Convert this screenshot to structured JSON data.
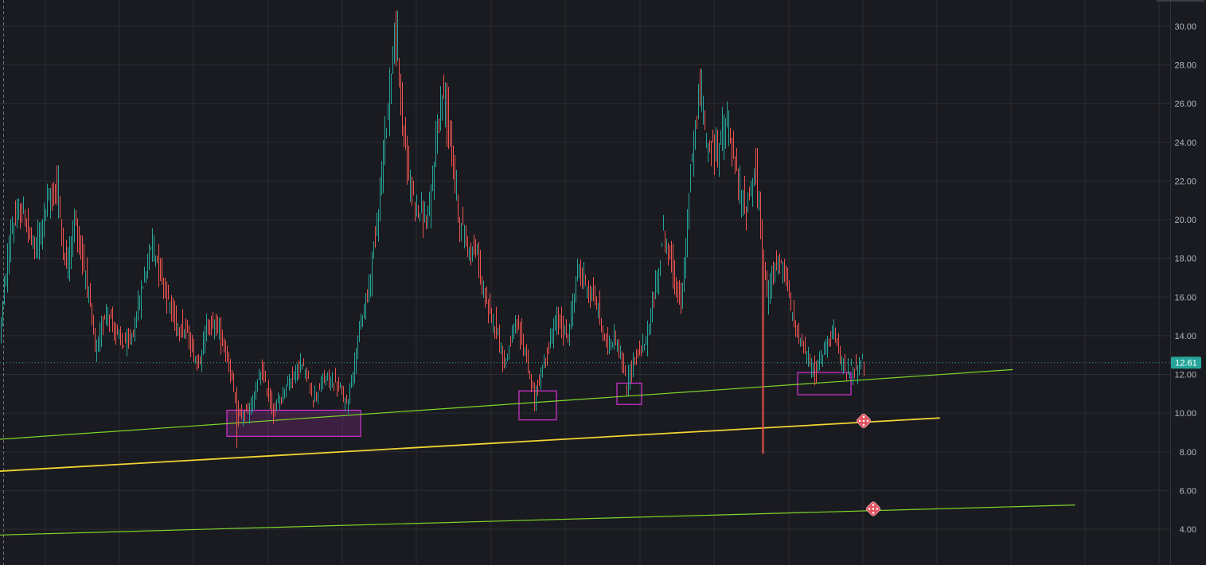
{
  "chart_data": {
    "type": "candlestick",
    "title": "",
    "xlabel": "",
    "ylabel": "",
    "ylim": [
      2.2,
      31.0
    ],
    "y_ticks": [
      "4.00",
      "6.00",
      "8.00",
      "10.00",
      "12.00",
      "14.00",
      "16.00",
      "18.00",
      "20.00",
      "22.00",
      "24.00",
      "26.00",
      "28.00",
      "30.00"
    ],
    "grid": true,
    "last_price": "12.61",
    "colors": {
      "background": "#1a1b20",
      "grid": "#2b2d35",
      "up_candle": "#26a69a",
      "down_candle": "#ef5350",
      "trendline_green": "#7cd82a",
      "trendline_yellow": "#f2d433",
      "zone_box": "#d633d6",
      "price_badge": "#26a69a",
      "dice_marker": "#e5535f"
    },
    "price_path": [
      [
        0,
        13.6
      ],
      [
        15,
        19.5
      ],
      [
        30,
        20.5
      ],
      [
        45,
        18.3
      ],
      [
        60,
        20.8
      ],
      [
        72,
        21.5
      ],
      [
        85,
        17.5
      ],
      [
        95,
        20.0
      ],
      [
        110,
        17.0
      ],
      [
        122,
        13.0
      ],
      [
        135,
        15.5
      ],
      [
        150,
        13.8
      ],
      [
        165,
        13.5
      ],
      [
        180,
        16.5
      ],
      [
        192,
        18.9
      ],
      [
        205,
        17.0
      ],
      [
        220,
        14.8
      ],
      [
        235,
        14.2
      ],
      [
        250,
        12.5
      ],
      [
        262,
        14.6
      ],
      [
        275,
        14.5
      ],
      [
        290,
        12.5
      ],
      [
        300,
        9.8
      ],
      [
        315,
        10.1
      ],
      [
        330,
        12.2
      ],
      [
        345,
        10.0
      ],
      [
        360,
        11.4
      ],
      [
        380,
        12.6
      ],
      [
        395,
        10.8
      ],
      [
        410,
        11.8
      ],
      [
        425,
        11.5
      ],
      [
        437,
        10.4
      ],
      [
        450,
        13.5
      ],
      [
        465,
        16.5
      ],
      [
        480,
        22.0
      ],
      [
        490,
        26.5
      ],
      [
        498,
        29.5
      ],
      [
        505,
        26.0
      ],
      [
        515,
        22.0
      ],
      [
        528,
        20.5
      ],
      [
        540,
        19.8
      ],
      [
        550,
        24.5
      ],
      [
        558,
        26.5
      ],
      [
        568,
        24.0
      ],
      [
        578,
        20.0
      ],
      [
        590,
        18.5
      ],
      [
        600,
        18.3
      ],
      [
        612,
        15.5
      ],
      [
        625,
        14.5
      ],
      [
        635,
        12.5
      ],
      [
        648,
        14.5
      ],
      [
        660,
        13.5
      ],
      [
        672,
        10.8
      ],
      [
        685,
        12.5
      ],
      [
        700,
        14.8
      ],
      [
        715,
        14.0
      ],
      [
        728,
        17.5
      ],
      [
        740,
        16.5
      ],
      [
        752,
        15.5
      ],
      [
        762,
        13.5
      ],
      [
        775,
        14.0
      ],
      [
        788,
        11.5
      ],
      [
        800,
        13.0
      ],
      [
        812,
        13.5
      ],
      [
        825,
        16.5
      ],
      [
        835,
        19.5
      ],
      [
        848,
        17.0
      ],
      [
        858,
        15.5
      ],
      [
        868,
        22.0
      ],
      [
        880,
        26.5
      ],
      [
        890,
        24.0
      ],
      [
        900,
        23.5
      ],
      [
        915,
        25.0
      ],
      [
        928,
        22.0
      ],
      [
        938,
        20.5
      ],
      [
        950,
        22.5
      ],
      [
        958,
        19.0
      ],
      [
        965,
        16.0
      ],
      [
        975,
        18.0
      ],
      [
        988,
        17.0
      ],
      [
        1000,
        14.5
      ],
      [
        1012,
        13.2
      ],
      [
        1025,
        12.0
      ],
      [
        1038,
        13.5
      ],
      [
        1048,
        14.5
      ],
      [
        1058,
        12.5
      ],
      [
        1068,
        12.2
      ],
      [
        1078,
        12.4
      ],
      [
        1085,
        12.6
      ]
    ],
    "wick_extremes": [
      [
        72,
        22.8
      ],
      [
        95,
        20.5
      ],
      [
        192,
        19.2
      ],
      [
        297,
        8.2
      ],
      [
        498,
        30.8
      ],
      [
        558,
        27.1
      ],
      [
        880,
        27.8
      ],
      [
        915,
        25.6
      ],
      [
        950,
        23.7
      ],
      [
        958,
        7.9
      ],
      [
        672,
        10.1
      ],
      [
        788,
        10.9
      ],
      [
        1025,
        11.7
      ]
    ],
    "trendlines": [
      {
        "color": "green",
        "x1": 0,
        "v1": 8.65,
        "x2": 1272,
        "v2": 12.25,
        "width": 1.2
      },
      {
        "color": "yellow",
        "x1": 0,
        "v1": 7.0,
        "x2": 1180,
        "v2": 9.75,
        "width": 1.8
      },
      {
        "color": "green",
        "x1": 0,
        "v1": 3.7,
        "x2": 1350,
        "v2": 5.25,
        "width": 1.2
      }
    ],
    "zones": [
      {
        "x1": 285,
        "x2": 453,
        "v_top": 10.15,
        "v_bottom": 8.8,
        "filled": true
      },
      {
        "x1": 652,
        "x2": 699,
        "v_top": 11.15,
        "v_bottom": 9.65,
        "filled": false
      },
      {
        "x1": 775,
        "x2": 806,
        "v_top": 11.55,
        "v_bottom": 10.45,
        "filled": false
      },
      {
        "x1": 1002,
        "x2": 1069,
        "v_top": 12.1,
        "v_bottom": 10.95,
        "filled": false
      }
    ],
    "markers": [
      {
        "x": 1085,
        "v": 9.6,
        "icon": "dice-icon"
      },
      {
        "x": 1097,
        "v": 5.05,
        "icon": "dice-icon"
      }
    ]
  }
}
